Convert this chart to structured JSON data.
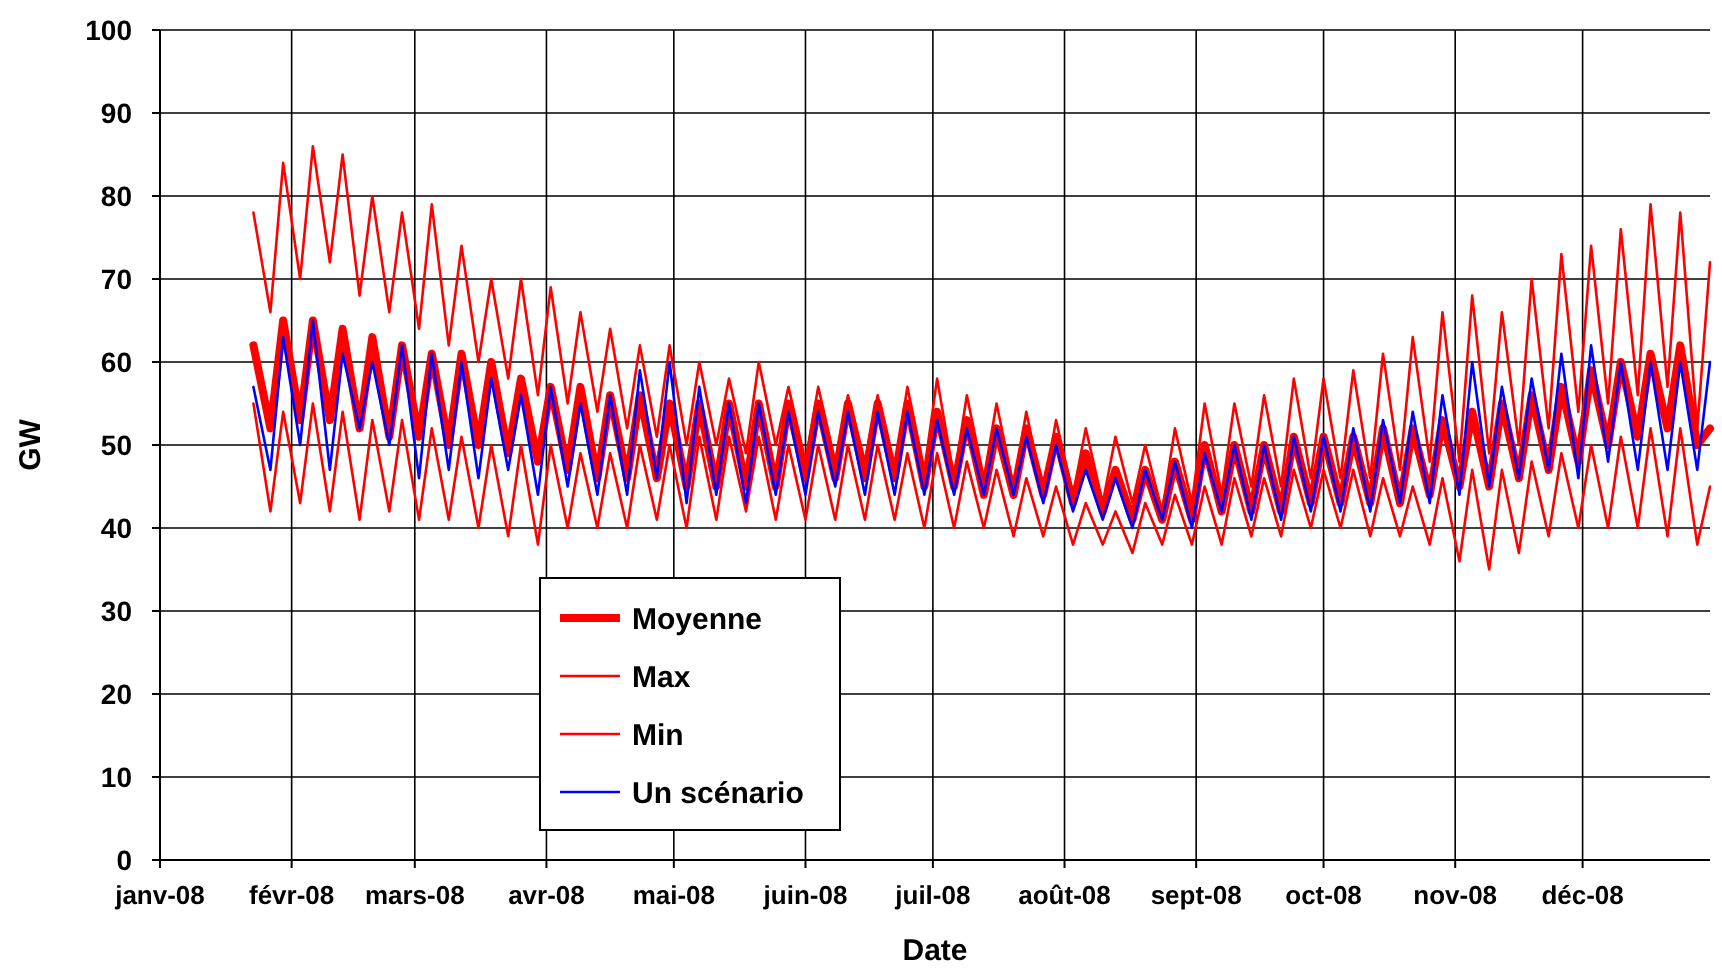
{
  "chart_data": {
    "type": "line",
    "xlabel": "Date",
    "ylabel": "GW",
    "x": [
      "2008-01-23",
      "2008-01-27",
      "2008-01-30",
      "2008-02-03",
      "2008-02-06",
      "2008-02-10",
      "2008-02-13",
      "2008-02-17",
      "2008-02-20",
      "2008-02-24",
      "2008-02-27",
      "2008-03-02",
      "2008-03-05",
      "2008-03-09",
      "2008-03-12",
      "2008-03-16",
      "2008-03-19",
      "2008-03-23",
      "2008-03-26",
      "2008-03-30",
      "2008-04-02",
      "2008-04-06",
      "2008-04-09",
      "2008-04-13",
      "2008-04-16",
      "2008-04-20",
      "2008-04-23",
      "2008-04-27",
      "2008-04-30",
      "2008-05-04",
      "2008-05-07",
      "2008-05-11",
      "2008-05-14",
      "2008-05-18",
      "2008-05-21",
      "2008-05-25",
      "2008-05-28",
      "2008-06-01",
      "2008-06-04",
      "2008-06-08",
      "2008-06-11",
      "2008-06-15",
      "2008-06-18",
      "2008-06-22",
      "2008-06-25",
      "2008-06-29",
      "2008-07-02",
      "2008-07-06",
      "2008-07-09",
      "2008-07-13",
      "2008-07-16",
      "2008-07-20",
      "2008-07-23",
      "2008-07-27",
      "2008-07-30",
      "2008-08-03",
      "2008-08-06",
      "2008-08-10",
      "2008-08-13",
      "2008-08-17",
      "2008-08-20",
      "2008-08-24",
      "2008-08-27",
      "2008-08-31",
      "2008-09-03",
      "2008-09-07",
      "2008-09-10",
      "2008-09-14",
      "2008-09-17",
      "2008-09-21",
      "2008-09-24",
      "2008-09-28",
      "2008-10-01",
      "2008-10-05",
      "2008-10-08",
      "2008-10-12",
      "2008-10-15",
      "2008-10-19",
      "2008-10-22",
      "2008-10-26",
      "2008-10-29",
      "2008-11-02",
      "2008-11-05",
      "2008-11-09",
      "2008-11-12",
      "2008-11-16",
      "2008-11-19",
      "2008-11-23",
      "2008-11-26",
      "2008-11-30",
      "2008-12-03",
      "2008-12-07",
      "2008-12-10",
      "2008-12-14",
      "2008-12-17",
      "2008-12-21",
      "2008-12-24",
      "2008-12-28",
      "2008-12-31"
    ],
    "series": [
      {
        "name": "Moyenne",
        "color": "#ff0000",
        "values": [
          62,
          52,
          65,
          53,
          65,
          53,
          64,
          52,
          63,
          51,
          62,
          51,
          61,
          50,
          61,
          50,
          60,
          49,
          58,
          48,
          57,
          47,
          57,
          46,
          56,
          46,
          56,
          46,
          55,
          45,
          55,
          45,
          55,
          45,
          55,
          45,
          55,
          46,
          55,
          46,
          55,
          46,
          55,
          46,
          55,
          45,
          54,
          45,
          53,
          44,
          52,
          44,
          52,
          44,
          51,
          43,
          49,
          42,
          47,
          41,
          47,
          41,
          48,
          41,
          50,
          42,
          50,
          42,
          50,
          42,
          51,
          43,
          51,
          43,
          51,
          43,
          52,
          43,
          52,
          44,
          53,
          45,
          54,
          45,
          55,
          46,
          56,
          47,
          57,
          48,
          59,
          50,
          60,
          51,
          61,
          52,
          62,
          50,
          52
        ]
      },
      {
        "name": "Max",
        "color": "#ff0000",
        "values": [
          78,
          66,
          84,
          70,
          86,
          72,
          85,
          68,
          80,
          66,
          78,
          64,
          79,
          62,
          74,
          60,
          70,
          58,
          70,
          56,
          69,
          55,
          66,
          54,
          64,
          52,
          62,
          51,
          62,
          50,
          60,
          50,
          58,
          49,
          60,
          50,
          57,
          48,
          57,
          48,
          56,
          48,
          56,
          47,
          57,
          47,
          58,
          46,
          56,
          46,
          55,
          45,
          54,
          44,
          53,
          44,
          52,
          43,
          51,
          43,
          50,
          42,
          52,
          43,
          55,
          44,
          55,
          45,
          56,
          45,
          58,
          46,
          58,
          46,
          59,
          46,
          61,
          47,
          63,
          48,
          66,
          48,
          68,
          49,
          66,
          50,
          70,
          52,
          73,
          54,
          74,
          55,
          76,
          56,
          79,
          57,
          78,
          52,
          72
        ]
      },
      {
        "name": "Min",
        "color": "#ff0000",
        "values": [
          55,
          42,
          54,
          43,
          55,
          42,
          54,
          41,
          53,
          42,
          53,
          41,
          52,
          41,
          51,
          40,
          50,
          39,
          50,
          38,
          50,
          40,
          49,
          40,
          49,
          40,
          50,
          41,
          50,
          40,
          51,
          41,
          51,
          42,
          51,
          41,
          50,
          41,
          50,
          41,
          50,
          41,
          50,
          41,
          49,
          40,
          49,
          40,
          48,
          40,
          47,
          39,
          46,
          39,
          45,
          38,
          43,
          38,
          42,
          37,
          43,
          38,
          44,
          38,
          45,
          38,
          46,
          39,
          46,
          39,
          47,
          40,
          47,
          40,
          47,
          39,
          46,
          39,
          45,
          38,
          46,
          36,
          47,
          35,
          47,
          37,
          48,
          39,
          49,
          40,
          50,
          40,
          51,
          40,
          52,
          39,
          52,
          38,
          45
        ]
      },
      {
        "name": "Un scénario",
        "color": "#0000ff",
        "values": [
          57,
          47,
          63,
          50,
          65,
          47,
          61,
          52,
          60,
          50,
          62,
          46,
          61,
          47,
          60,
          46,
          58,
          47,
          56,
          44,
          57,
          45,
          55,
          44,
          56,
          44,
          59,
          46,
          60,
          43,
          57,
          44,
          55,
          43,
          55,
          44,
          54,
          44,
          54,
          45,
          54,
          44,
          54,
          44,
          54,
          44,
          53,
          44,
          52,
          44,
          52,
          44,
          51,
          43,
          50,
          42,
          47,
          41,
          46,
          40,
          47,
          41,
          48,
          40,
          49,
          42,
          50,
          41,
          50,
          41,
          51,
          42,
          51,
          42,
          52,
          42,
          53,
          43,
          54,
          43,
          56,
          44,
          60,
          45,
          57,
          46,
          58,
          47,
          61,
          46,
          62,
          48,
          60,
          47,
          60,
          47,
          60,
          47,
          60
        ]
      }
    ],
    "xlim": [
      "2008-01-01",
      "2008-12-31"
    ],
    "xticks": [
      {
        "value": "2008-01-01",
        "label": "janv-08"
      },
      {
        "value": "2008-02-01",
        "label": "févr-08"
      },
      {
        "value": "2008-03-01",
        "label": "mars-08"
      },
      {
        "value": "2008-04-01",
        "label": "avr-08"
      },
      {
        "value": "2008-05-01",
        "label": "mai-08"
      },
      {
        "value": "2008-06-01",
        "label": "juin-08"
      },
      {
        "value": "2008-07-01",
        "label": "juil-08"
      },
      {
        "value": "2008-08-01",
        "label": "août-08"
      },
      {
        "value": "2008-09-01",
        "label": "sept-08"
      },
      {
        "value": "2008-10-01",
        "label": "oct-08"
      },
      {
        "value": "2008-11-01",
        "label": "nov-08"
      },
      {
        "value": "2008-12-01",
        "label": "déc-08"
      }
    ],
    "ylim": [
      0,
      100
    ],
    "yticks": [
      0,
      10,
      20,
      30,
      40,
      50,
      60,
      70,
      80,
      90,
      100
    ],
    "grid": true,
    "legend": "bottom left",
    "marker": "none",
    "line_style": "solid"
  }
}
